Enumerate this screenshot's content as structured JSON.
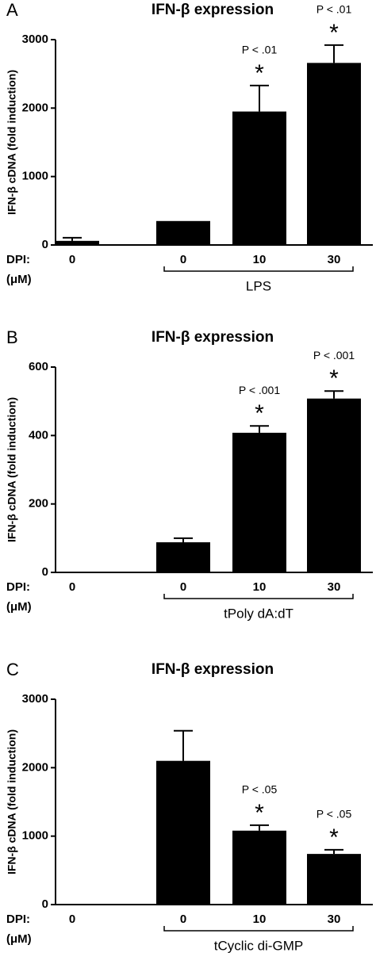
{
  "chart_data": [
    {
      "type": "bar",
      "panel": "A",
      "title": "IFN-β expression",
      "ylabel": "IFN-β cDNA (fold induction)",
      "x_prefix": "DPI:",
      "x_unit": "(μM)",
      "group_label": "LPS",
      "categories": [
        "0",
        "0",
        "10",
        "30"
      ],
      "values": [
        60,
        350,
        1950,
        2660
      ],
      "errors": [
        45,
        null,
        380,
        260
      ],
      "p_labels": [
        null,
        null,
        "P < .01",
        "P < .01"
      ],
      "stars": [
        null,
        null,
        "*",
        "*"
      ],
      "color": "#000000",
      "ylim": [
        0,
        3000
      ],
      "yticks": [
        0,
        1000,
        2000,
        3000
      ]
    },
    {
      "type": "bar",
      "panel": "B",
      "title": "IFN-β expression",
      "ylabel": "IFN-β cDNA (fold induction)",
      "x_prefix": "DPI:",
      "x_unit": "(μM)",
      "group_label": "tPoly dA:dT",
      "categories": [
        "0",
        "0",
        "10",
        "30"
      ],
      "values": [
        2,
        88,
        408,
        508
      ],
      "errors": [
        null,
        12,
        20,
        22
      ],
      "p_labels": [
        null,
        null,
        "P < .001",
        "P < .001"
      ],
      "stars": [
        null,
        null,
        "*",
        "*"
      ],
      "color": "#000000",
      "ylim": [
        0,
        600
      ],
      "yticks": [
        0,
        200,
        400,
        600
      ]
    },
    {
      "type": "bar",
      "panel": "C",
      "title": "IFN-β expression",
      "ylabel": "IFN-β cDNA (fold induction)",
      "x_prefix": "DPI:",
      "x_unit": "(μM)",
      "group_label": "tCyclic di-GMP",
      "categories": [
        "0",
        "0",
        "10",
        "30"
      ],
      "values": [
        5,
        2100,
        1080,
        740
      ],
      "errors": [
        null,
        440,
        80,
        60
      ],
      "p_labels": [
        null,
        null,
        "P < .05",
        "P < .05"
      ],
      "stars": [
        null,
        null,
        "*",
        "*"
      ],
      "color": "#000000",
      "ylim": [
        0,
        3000
      ],
      "yticks": [
        0,
        1000,
        2000,
        3000
      ]
    }
  ]
}
